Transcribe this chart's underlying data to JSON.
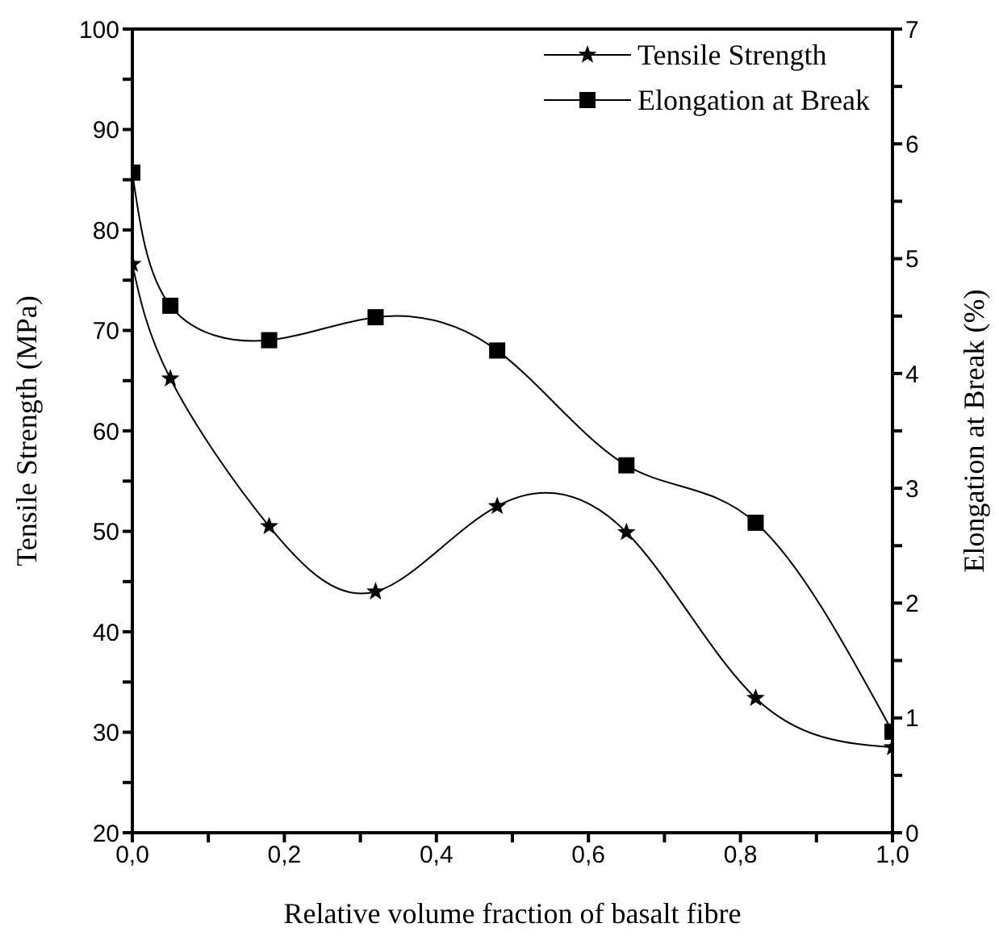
{
  "chart_data": {
    "type": "line",
    "xlabel": "Relative volume fraction of basalt fibre",
    "ylabel": "Tensile Strength (MPa)",
    "y2label": "Elongation at Break (%)",
    "x": [
      0,
      0.05,
      0.18,
      0.32,
      0.48,
      0.65,
      0.82,
      1.0
    ],
    "series": [
      {
        "name": "Tensile Strength",
        "color": "#000000",
        "marker": "star",
        "values": [
          76.6,
          65.2,
          50.5,
          44.0,
          52.5,
          49.9,
          33.4,
          28.5
        ]
      },
      {
        "name": "Elongation at Break",
        "color": "#000000",
        "marker": "square",
        "axis": "y2",
        "values": [
          5.75,
          4.59,
          4.29,
          4.49,
          4.2,
          3.2,
          2.7,
          0.88
        ]
      }
    ],
    "xlim": [
      0,
      1.0
    ],
    "xticks": [
      {
        "value": 0,
        "label": "0,0"
      },
      {
        "value": 0.1,
        "label": null
      },
      {
        "value": 0.2,
        "label": "0,2"
      },
      {
        "value": 0.3,
        "label": null
      },
      {
        "value": 0.4,
        "label": "0,4"
      },
      {
        "value": 0.5,
        "label": null
      },
      {
        "value": 0.6,
        "label": "0,6"
      },
      {
        "value": 0.7,
        "label": null
      },
      {
        "value": 0.8,
        "label": "0,8"
      },
      {
        "value": 0.9,
        "label": null
      },
      {
        "value": 1.0,
        "label": "1,0"
      }
    ],
    "ylim": [
      20,
      100
    ],
    "yticks": [
      20,
      {
        "value": 25,
        "label": null
      },
      30,
      {
        "value": 35,
        "label": null
      },
      40,
      {
        "value": 45,
        "label": null
      },
      50,
      {
        "value": 55,
        "label": null
      },
      60,
      {
        "value": 65,
        "label": null
      },
      70,
      {
        "value": 75,
        "label": null
      },
      80,
      {
        "value": 85,
        "label": null
      },
      90,
      {
        "value": 95,
        "label": null
      },
      100
    ],
    "y2lim": [
      0,
      7
    ],
    "y2ticks": [
      0,
      {
        "value": 0.5,
        "label": null
      },
      1,
      {
        "value": 1.5,
        "label": null
      },
      2,
      {
        "value": 2.5,
        "label": null
      },
      3,
      {
        "value": 3.5,
        "label": null
      },
      4,
      {
        "value": 4.5,
        "label": null
      },
      5,
      {
        "value": 5.5,
        "label": null
      },
      6,
      {
        "value": 6.5,
        "label": null
      },
      7
    ],
    "legend": "top right",
    "grid": false,
    "line_style": "solid"
  }
}
